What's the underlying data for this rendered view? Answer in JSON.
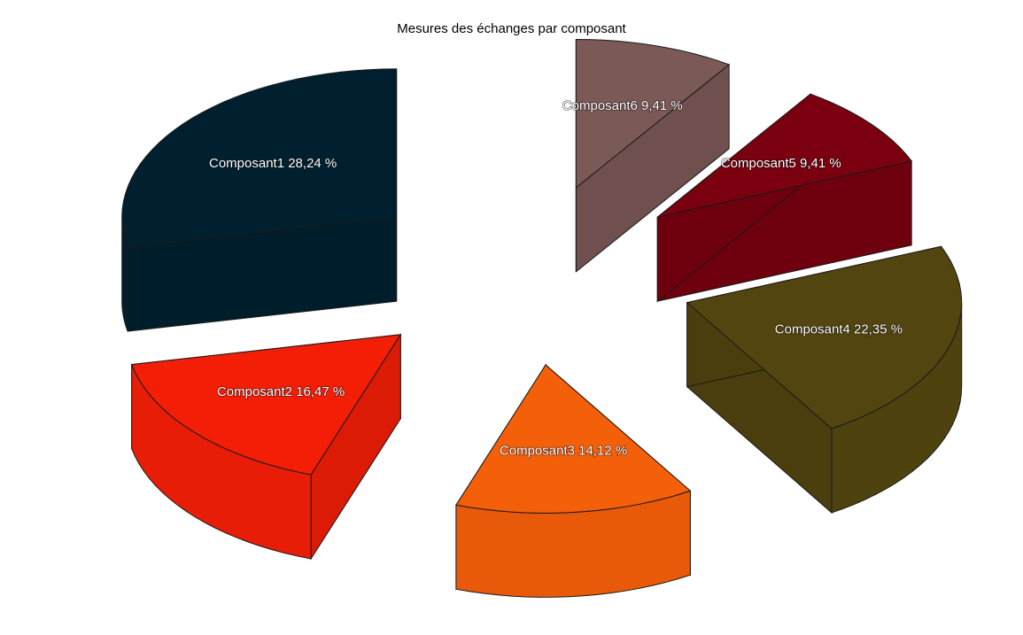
{
  "chart_data": {
    "type": "pie",
    "title": "Mesures des échanges par composant",
    "three_d": true,
    "exploded": true,
    "slices": [
      {
        "label": "Composant1",
        "value": 28.24,
        "display": "Composant1 28,24 %",
        "color": "#002030"
      },
      {
        "label": "Composant2",
        "value": 16.47,
        "display": "Composant2 16,47 %",
        "color": "#f41e07"
      },
      {
        "label": "Composant3",
        "value": 14.12,
        "display": "Composant3 14,12 %",
        "color": "#f45f0a"
      },
      {
        "label": "Composant4",
        "value": 22.35,
        "display": "Composant4 22,35 %",
        "color": "#524510"
      },
      {
        "label": "Composant5",
        "value": 9.41,
        "display": "Composant5 9,41 %",
        "color": "#7a0010"
      },
      {
        "label": "Composant6",
        "value": 9.41,
        "display": "Composant6 9,41 %",
        "color": "#7b5957"
      }
    ]
  }
}
